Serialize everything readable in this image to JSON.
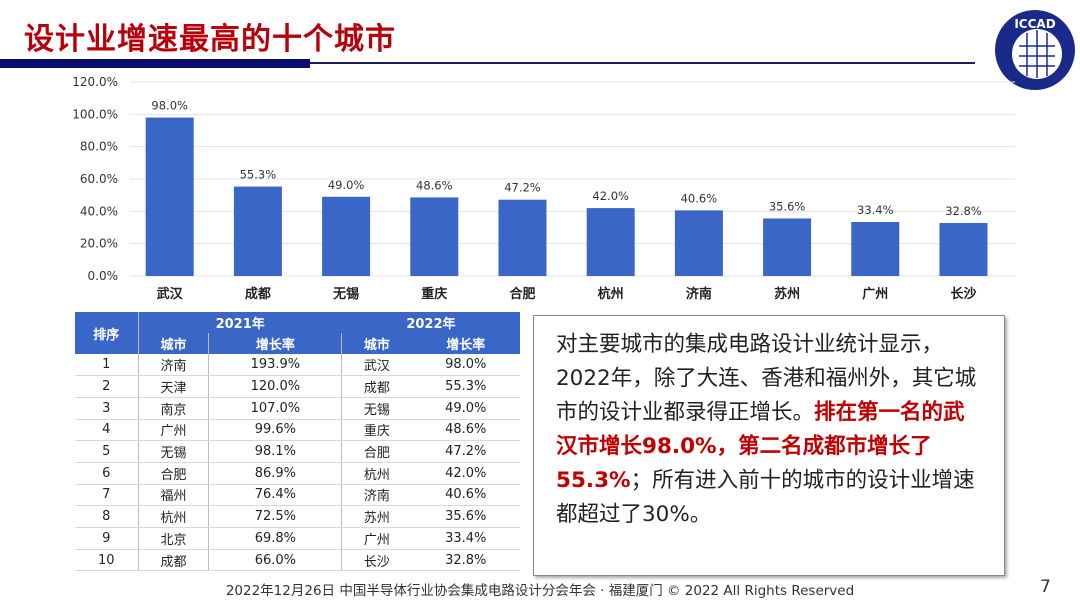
{
  "header": {
    "title": "设计业增速最高的十个城市",
    "logo_text": "ICCAD",
    "logo_subtext": "中国半导体行业协会集成电路设计分会"
  },
  "chart_data": {
    "type": "bar",
    "categories": [
      "武汉",
      "成都",
      "无锡",
      "重庆",
      "合肥",
      "杭州",
      "济南",
      "苏州",
      "广州",
      "长沙"
    ],
    "values": [
      98.0,
      55.3,
      49.0,
      48.6,
      47.2,
      42.0,
      40.6,
      35.6,
      33.4,
      32.8
    ],
    "data_labels": [
      "98.0%",
      "55.3%",
      "49.0%",
      "48.6%",
      "47.2%",
      "42.0%",
      "40.6%",
      "35.6%",
      "33.4%",
      "32.8%"
    ],
    "yticks": [
      "0.0%",
      "20.0%",
      "40.0%",
      "60.0%",
      "80.0%",
      "100.0%",
      "120.0%"
    ],
    "ylim": [
      0,
      120
    ],
    "grid": true,
    "color": "#3a66c8"
  },
  "table": {
    "rank_header": "排序",
    "years": [
      "2021年",
      "2022年"
    ],
    "col_headers": [
      "城市",
      "增长率",
      "城市",
      "增长率"
    ],
    "rows": [
      [
        "1",
        "济南",
        "193.9%",
        "武汉",
        "98.0%"
      ],
      [
        "2",
        "天津",
        "120.0%",
        "成都",
        "55.3%"
      ],
      [
        "3",
        "南京",
        "107.0%",
        "无锡",
        "49.0%"
      ],
      [
        "4",
        "广州",
        "99.6%",
        "重庆",
        "48.6%"
      ],
      [
        "5",
        "无锡",
        "98.1%",
        "合肥",
        "47.2%"
      ],
      [
        "6",
        "合肥",
        "86.9%",
        "杭州",
        "42.0%"
      ],
      [
        "7",
        "福州",
        "76.4%",
        "济南",
        "40.6%"
      ],
      [
        "8",
        "杭州",
        "72.5%",
        "苏州",
        "35.6%"
      ],
      [
        "9",
        "北京",
        "69.8%",
        "广州",
        "33.4%"
      ],
      [
        "10",
        "成都",
        "66.0%",
        "长沙",
        "32.8%"
      ]
    ]
  },
  "summary": {
    "part1": "对主要城市的集成电路设计业统计显示，2022年，除了大连、香港和福州外，其它城市的设计业都录得正增长。",
    "highlight": "排在第一名的武汉市增长98.0%，第二名成都市增长了55.3%",
    "part2": "；所有进入前十的城市的设计业增速都超过了30%。"
  },
  "footer": {
    "text": "2022年12月26日 中国半导体行业协会集成电路设计分会年会 · 福建厦门 © 2022 All Rights Reserved",
    "page": "7"
  }
}
